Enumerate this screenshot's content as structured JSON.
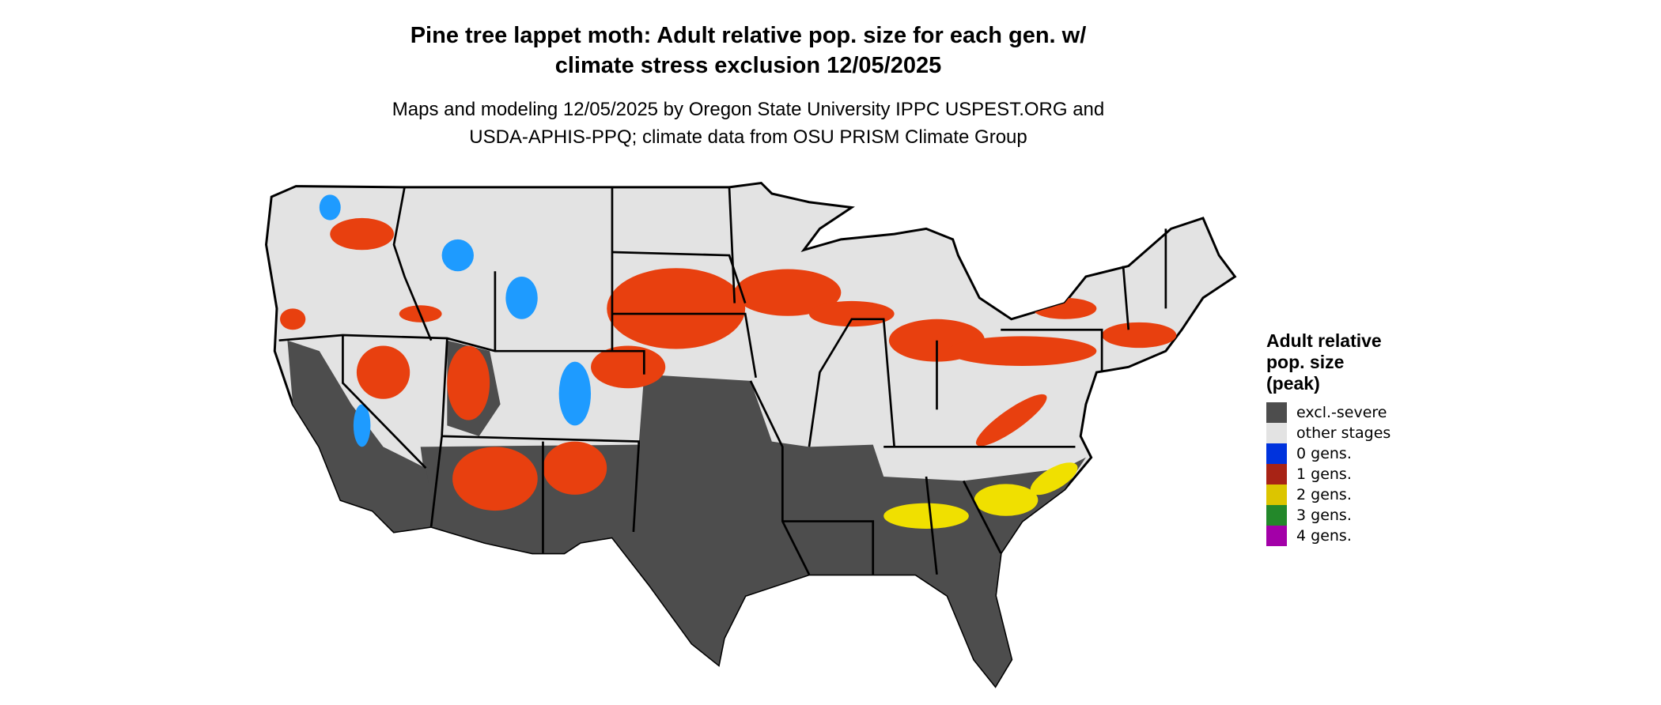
{
  "title": {
    "line1": "Pine tree lappet moth: Adult relative pop. size for each gen. w/",
    "line2": "climate stress exclusion 12/05/2025"
  },
  "subtitle": {
    "line1": "Maps and modeling 12/05/2025 by Oregon State University IPPC USPEST.ORG and",
    "line2": "USDA-APHIS-PPQ; climate data from OSU PRISM Climate Group"
  },
  "map": {
    "region": "Contiguous United States",
    "colors": {
      "background_land": "#e3e3e3",
      "excluded": "#4d4d4d",
      "one_gen_map": "#e8400f",
      "zero_gen_map": "#1e9bff",
      "two_gen_map": "#f0e000",
      "borders": "#000000"
    }
  },
  "legend": {
    "title_lines": [
      "Adult relative",
      "pop. size",
      "(peak)"
    ],
    "items": [
      {
        "label": "excl.-severe",
        "color": "#4d4d4d"
      },
      {
        "label": "other stages",
        "color": "#e3e3e3"
      },
      {
        "label": "0 gens.",
        "color": "#0033dd"
      },
      {
        "label": "1 gens.",
        "color": "#a82315"
      },
      {
        "label": "2 gens.",
        "color": "#dcc500"
      },
      {
        "label": "3 gens.",
        "color": "#23882a"
      },
      {
        "label": "4 gens.",
        "color": "#a300a8"
      }
    ]
  }
}
